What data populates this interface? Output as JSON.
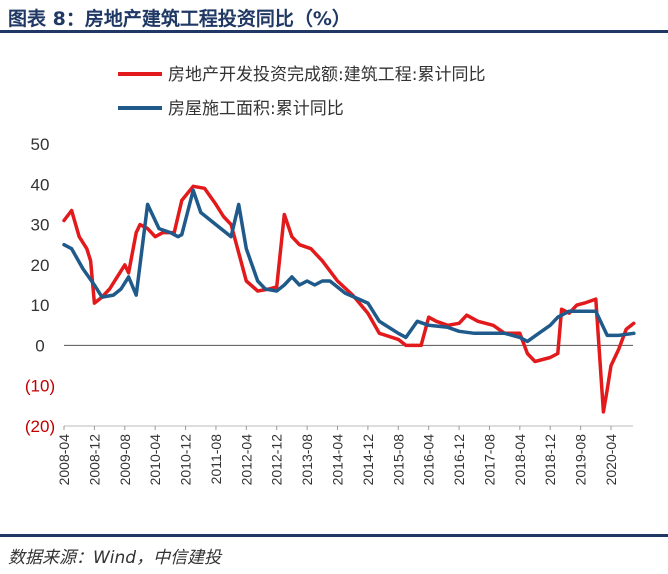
{
  "header": {
    "title": "图表 8：房地产建筑工程投资同比（%）"
  },
  "footer": {
    "source": "数据来源：Wind，中信建投"
  },
  "chart_data": {
    "type": "line",
    "ylim": [
      -20,
      50
    ],
    "y_ticks": [
      50,
      40,
      30,
      20,
      10,
      0,
      -10,
      -20
    ],
    "y_tick_labels": [
      "50",
      "40",
      "30",
      "20",
      "10",
      "0",
      "(10)",
      "(20)"
    ],
    "x_ticks": [
      "2008-04",
      "2008-12",
      "2009-08",
      "2010-04",
      "2010-12",
      "2011-08",
      "2012-04",
      "2012-12",
      "2013-08",
      "2014-04",
      "2014-12",
      "2015-08",
      "2016-04",
      "2016-12",
      "2017-08",
      "2018-04",
      "2018-12",
      "2019-08",
      "2020-04"
    ],
    "x_range": [
      "2008-04",
      "2020-10"
    ],
    "legend": {
      "placement": "top"
    },
    "colors": {
      "red": "#e31a1c",
      "blue": "#1f5a8b"
    },
    "series": [
      {
        "name": "房地产开发投资完成额:建筑工程:累计同比",
        "color": "#e31a1c",
        "points": [
          [
            "2008-04",
            31
          ],
          [
            "2008-06",
            33.5
          ],
          [
            "2008-08",
            27
          ],
          [
            "2008-10",
            24
          ],
          [
            "2008-11",
            21
          ],
          [
            "2008-12",
            10.5
          ],
          [
            "2009-02",
            12
          ],
          [
            "2009-04",
            14
          ],
          [
            "2009-06",
            17
          ],
          [
            "2009-08",
            20
          ],
          [
            "2009-09",
            18
          ],
          [
            "2009-11",
            28
          ],
          [
            "2009-12",
            30
          ],
          [
            "2010-02",
            29
          ],
          [
            "2010-04",
            27
          ],
          [
            "2010-06",
            28
          ],
          [
            "2010-09",
            28
          ],
          [
            "2010-11",
            36
          ],
          [
            "2011-02",
            39.5
          ],
          [
            "2011-05",
            39
          ],
          [
            "2011-08",
            35
          ],
          [
            "2011-10",
            32
          ],
          [
            "2011-12",
            30
          ],
          [
            "2012-02",
            23
          ],
          [
            "2012-04",
            16
          ],
          [
            "2012-07",
            13.5
          ],
          [
            "2012-10",
            14
          ],
          [
            "2012-12",
            14.5
          ],
          [
            "2013-02",
            32.5
          ],
          [
            "2013-04",
            27
          ],
          [
            "2013-06",
            25
          ],
          [
            "2013-09",
            24
          ],
          [
            "2013-12",
            21
          ],
          [
            "2014-04",
            16
          ],
          [
            "2014-08",
            12.5
          ],
          [
            "2014-12",
            8
          ],
          [
            "2015-03",
            3
          ],
          [
            "2015-08",
            1.5
          ],
          [
            "2015-10",
            0
          ],
          [
            "2016-02",
            0
          ],
          [
            "2016-04",
            7
          ],
          [
            "2016-06",
            6
          ],
          [
            "2016-09",
            5
          ],
          [
            "2016-12",
            5.5
          ],
          [
            "2017-02",
            7.5
          ],
          [
            "2017-05",
            6
          ],
          [
            "2017-09",
            5
          ],
          [
            "2017-12",
            3
          ],
          [
            "2018-04",
            3
          ],
          [
            "2018-06",
            -2
          ],
          [
            "2018-08",
            -4
          ],
          [
            "2018-10",
            -3.5
          ],
          [
            "2018-12",
            -3
          ],
          [
            "2019-02",
            -2
          ],
          [
            "2019-03",
            9
          ],
          [
            "2019-05",
            8
          ],
          [
            "2019-07",
            10
          ],
          [
            "2019-09",
            10.5
          ],
          [
            "2019-12",
            11.5
          ],
          [
            "2020-02",
            -16.5
          ],
          [
            "2020-03",
            -11
          ],
          [
            "2020-04",
            -5
          ],
          [
            "2020-06",
            -1
          ],
          [
            "2020-08",
            4
          ],
          [
            "2020-10",
            5.5
          ]
        ]
      },
      {
        "name": "房屋施工面积:累计同比",
        "color": "#1f5a8b",
        "points": [
          [
            "2008-04",
            25
          ],
          [
            "2008-06",
            24
          ],
          [
            "2008-09",
            19
          ],
          [
            "2008-12",
            15
          ],
          [
            "2009-02",
            12
          ],
          [
            "2009-05",
            12.5
          ],
          [
            "2009-07",
            14
          ],
          [
            "2009-09",
            17
          ],
          [
            "2009-11",
            12.5
          ],
          [
            "2010-02",
            35
          ],
          [
            "2010-05",
            29
          ],
          [
            "2010-08",
            28
          ],
          [
            "2010-10",
            27
          ],
          [
            "2010-11",
            27.5
          ],
          [
            "2011-02",
            38.5
          ],
          [
            "2011-04",
            33
          ],
          [
            "2011-08",
            30
          ],
          [
            "2011-12",
            27
          ],
          [
            "2012-02",
            35
          ],
          [
            "2012-04",
            24
          ],
          [
            "2012-07",
            16
          ],
          [
            "2012-09",
            14
          ],
          [
            "2012-12",
            13.5
          ],
          [
            "2013-02",
            15
          ],
          [
            "2013-04",
            17
          ],
          [
            "2013-06",
            15
          ],
          [
            "2013-08",
            16
          ],
          [
            "2013-10",
            15
          ],
          [
            "2013-12",
            16
          ],
          [
            "2014-02",
            16
          ],
          [
            "2014-06",
            13
          ],
          [
            "2014-12",
            10.5
          ],
          [
            "2015-03",
            6
          ],
          [
            "2015-08",
            3
          ],
          [
            "2015-10",
            2
          ],
          [
            "2016-01",
            6
          ],
          [
            "2016-04",
            5
          ],
          [
            "2016-09",
            4.5
          ],
          [
            "2016-12",
            3.5
          ],
          [
            "2017-04",
            3
          ],
          [
            "2017-08",
            3
          ],
          [
            "2017-12",
            3
          ],
          [
            "2018-04",
            2
          ],
          [
            "2018-06",
            1
          ],
          [
            "2018-09",
            3
          ],
          [
            "2018-12",
            5
          ],
          [
            "2019-02",
            7
          ],
          [
            "2019-05",
            8.5
          ],
          [
            "2019-09",
            8.5
          ],
          [
            "2019-12",
            8.5
          ],
          [
            "2020-03",
            2.5
          ],
          [
            "2020-06",
            2.5
          ],
          [
            "2020-10",
            3
          ]
        ]
      }
    ]
  }
}
